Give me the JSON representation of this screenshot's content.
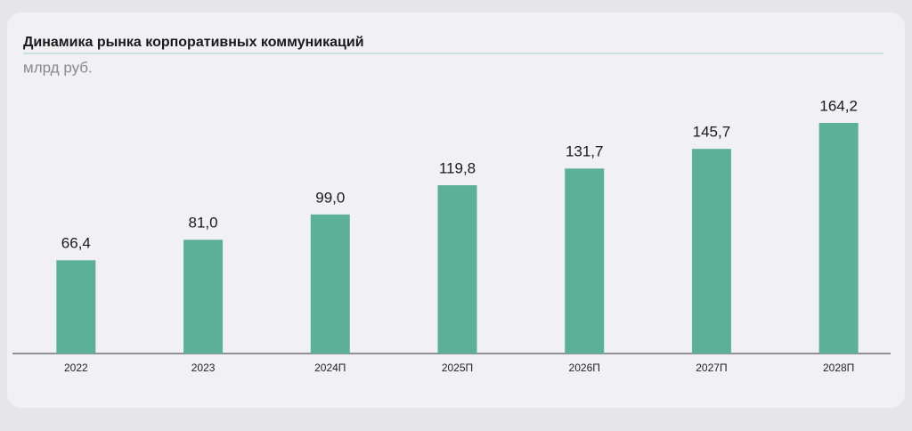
{
  "chart_data": {
    "type": "bar",
    "title": "Динамика рынка корпоративных коммуникаций",
    "subtitle": "млрд руб.",
    "categories": [
      "2022",
      "2023",
      "2024П",
      "2025П",
      "2026П",
      "2027П",
      "2028П"
    ],
    "values": [
      66.4,
      81.0,
      99.0,
      119.8,
      131.7,
      145.7,
      164.2
    ],
    "value_labels": [
      "66,4",
      "81,0",
      "99,0",
      "119,8",
      "131,7",
      "145,7",
      "164,2"
    ],
    "color": "#5bb095"
  }
}
